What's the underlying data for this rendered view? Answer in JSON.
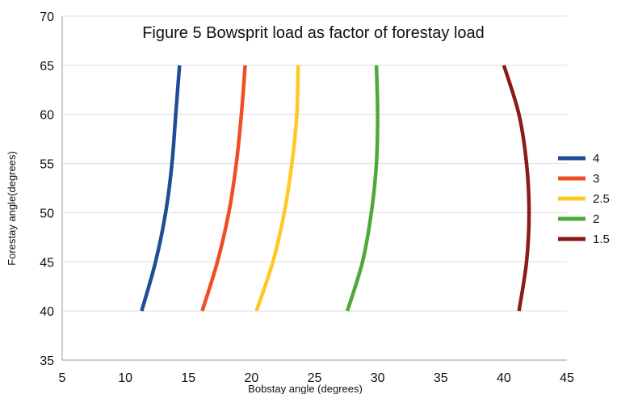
{
  "chart_data": {
    "type": "line",
    "title": "Figure 5 Bowsprit load as factor of forestay load",
    "xlabel": "Bobstay angle (degrees)",
    "ylabel": "Forestay angle(degrees)",
    "xlim": [
      5,
      45
    ],
    "ylim": [
      35,
      70
    ],
    "xticks": [
      "5",
      "10",
      "15",
      "20",
      "25",
      "30",
      "35",
      "40",
      "45"
    ],
    "yticks": [
      "35",
      "40",
      "45",
      "50",
      "55",
      "60",
      "65",
      "70"
    ],
    "grid": "horizontal",
    "legend_position": "right",
    "series": [
      {
        "name": "4",
        "color": "#1f4e96",
        "x": [
          11.3,
          12.4,
          13.2,
          13.7,
          14.0,
          14.3
        ],
        "y": [
          40,
          45,
          50,
          55,
          60,
          65
        ]
      },
      {
        "name": "3",
        "color": "#f04e23",
        "x": [
          16.1,
          17.3,
          18.2,
          18.8,
          19.2,
          19.5
        ],
        "y": [
          40,
          45,
          50,
          55,
          60,
          65
        ]
      },
      {
        "name": "2.5",
        "color": "#ffc925",
        "x": [
          20.4,
          21.7,
          22.6,
          23.2,
          23.6,
          23.7
        ],
        "y": [
          40,
          45,
          50,
          55,
          60,
          65
        ]
      },
      {
        "name": "2",
        "color": "#4daa3a",
        "x": [
          27.6,
          28.8,
          29.5,
          29.9,
          30.0,
          29.9
        ],
        "y": [
          40,
          45,
          50,
          55,
          60,
          65
        ]
      },
      {
        "name": "1.5",
        "color": "#8b1a1a",
        "x": [
          41.2,
          41.8,
          42.0,
          41.8,
          41.2,
          40.0
        ],
        "y": [
          40,
          45,
          50,
          55,
          60,
          65
        ]
      }
    ]
  }
}
